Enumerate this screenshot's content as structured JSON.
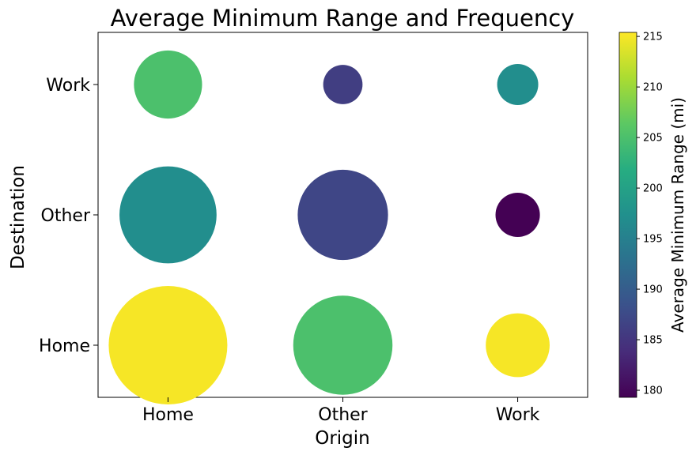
{
  "chart_data": {
    "type": "scatter",
    "title": "Average Minimum Range and Frequency",
    "xlabel": "Origin",
    "ylabel": "Destination",
    "x_categories": [
      "Home",
      "Other",
      "Work"
    ],
    "y_categories": [
      "Home",
      "Other",
      "Work"
    ],
    "colorbar": {
      "label": "Average Minimum Range (mi)",
      "ticks": [
        180,
        185,
        190,
        195,
        200,
        205,
        210,
        215
      ],
      "range": [
        179.3,
        215.4
      ],
      "colormap": "viridis"
    },
    "points": [
      {
        "origin": "Home",
        "destination": "Home",
        "range": 215,
        "relative_frequency": 1.0
      },
      {
        "origin": "Other",
        "destination": "Home",
        "range": 205,
        "relative_frequency": 0.7
      },
      {
        "origin": "Work",
        "destination": "Home",
        "range": 215,
        "relative_frequency": 0.29
      },
      {
        "origin": "Home",
        "destination": "Other",
        "range": 197,
        "relative_frequency": 0.67
      },
      {
        "origin": "Other",
        "destination": "Other",
        "range": 187,
        "relative_frequency": 0.58
      },
      {
        "origin": "Work",
        "destination": "Other",
        "range": 179,
        "relative_frequency": 0.14
      },
      {
        "origin": "Home",
        "destination": "Work",
        "range": 205,
        "relative_frequency": 0.33
      },
      {
        "origin": "Other",
        "destination": "Work",
        "range": 186,
        "relative_frequency": 0.11
      },
      {
        "origin": "Work",
        "destination": "Work",
        "range": 197,
        "relative_frequency": 0.12
      }
    ]
  }
}
